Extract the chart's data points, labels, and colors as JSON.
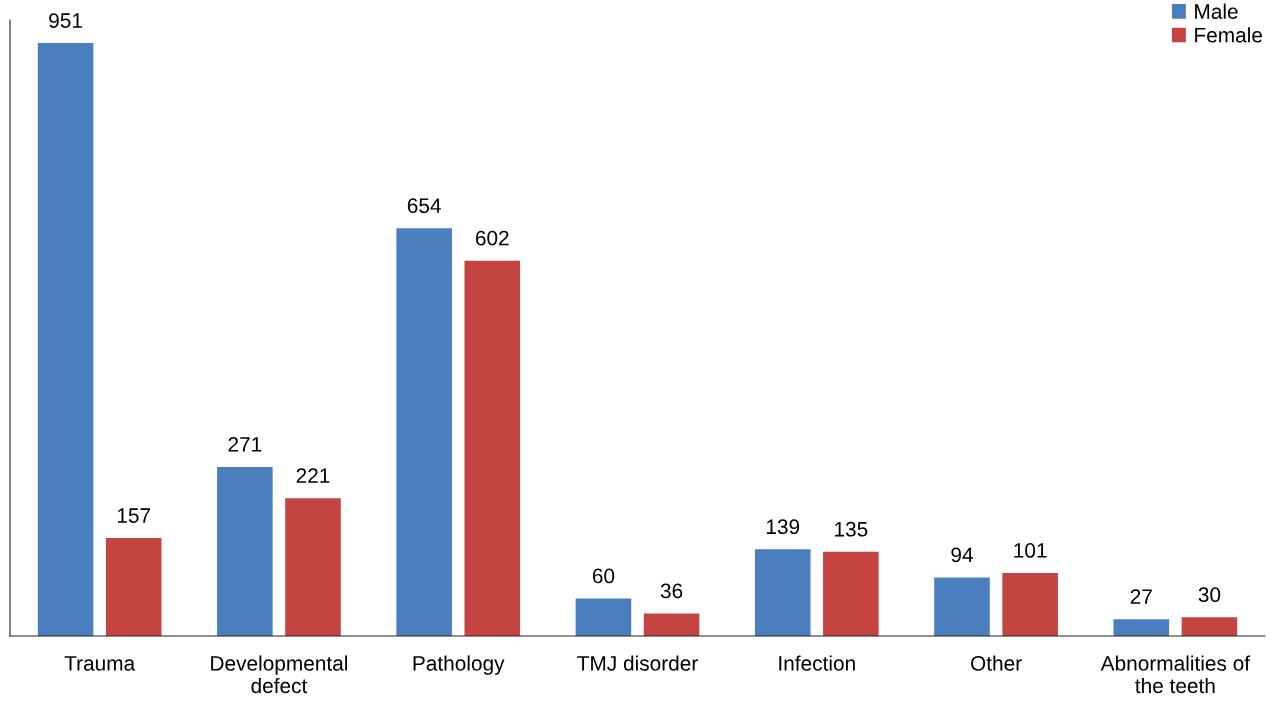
{
  "chart_data": {
    "type": "bar",
    "categories": [
      "Trauma",
      "Developmental\ndefect",
      "Pathology",
      "TMJ disorder",
      "Infection",
      "Other",
      "Abnormalities of\nthe teeth"
    ],
    "series": [
      {
        "name": "Male",
        "color": "#4a7ebf",
        "values": [
          951,
          271,
          654,
          60,
          139,
          94,
          27
        ]
      },
      {
        "name": "Female",
        "color": "#c44441",
        "values": [
          157,
          221,
          602,
          36,
          135,
          101,
          30
        ]
      }
    ],
    "data_labels": true,
    "legend": "top right",
    "grid": false,
    "tick_labels": "x"
  }
}
